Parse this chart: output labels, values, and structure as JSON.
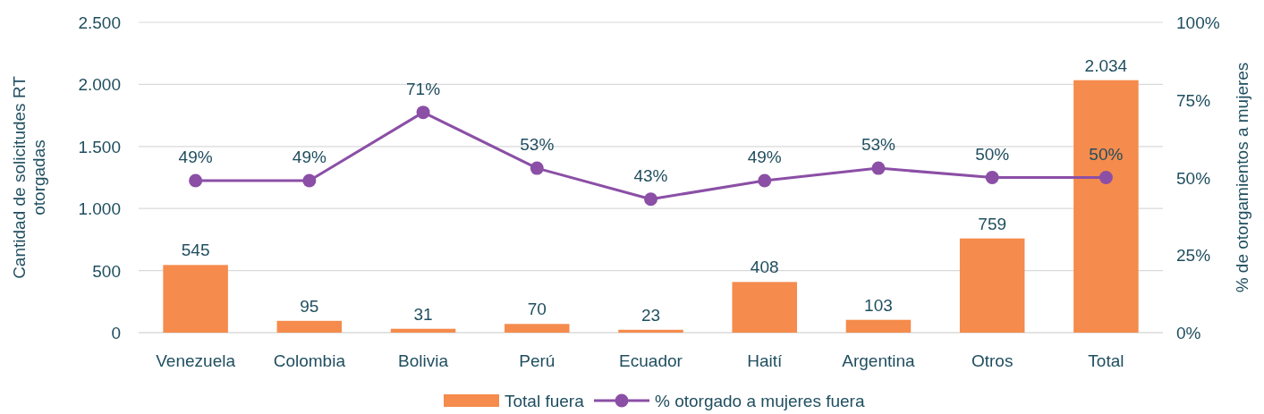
{
  "chart_data": {
    "type": "bar",
    "categories": [
      "Venezuela",
      "Colombia",
      "Bolivia",
      "Perú",
      "Ecuador",
      "Haití",
      "Argentina",
      "Otros",
      "Total"
    ],
    "series": [
      {
        "name": "Total fuera",
        "color": "#f58b4c",
        "values": [
          545,
          95,
          31,
          70,
          23,
          408,
          103,
          759,
          2034
        ],
        "value_labels": [
          "545",
          "95",
          "31",
          "70",
          "23",
          "408",
          "103",
          "759",
          "2.034"
        ]
      },
      {
        "name": "% otorgado a mujeres fuera",
        "type": "line",
        "axis": "y2",
        "color": "#8b4fa6",
        "marker": "circle",
        "values": [
          49,
          49,
          71,
          53,
          43,
          49,
          53,
          50,
          50
        ],
        "value_labels": [
          "49%",
          "49%",
          "71%",
          "53%",
          "43%",
          "49%",
          "53%",
          "50%",
          "50%"
        ]
      }
    ],
    "ylabel": "Cantidad de solicitudes RT otorgadas",
    "y2label": "% de otorgamientos a mujeres",
    "ylim": [
      0,
      2500
    ],
    "yticks": [
      0,
      500,
      {
        "value": 1000,
        "label": "1.000"
      },
      {
        "value": 1500,
        "label": "1.500"
      },
      {
        "value": 2000,
        "label": "2.000"
      },
      {
        "value": 2500,
        "label": "2.500"
      }
    ],
    "y2lim": [
      0,
      100
    ],
    "y2ticks": [
      {
        "value": 0,
        "label": "0%"
      },
      {
        "value": 25,
        "label": "25%"
      },
      {
        "value": 50,
        "label": "50%"
      },
      {
        "value": 75,
        "label": "75%"
      },
      {
        "value": 100,
        "label": "100%"
      }
    ],
    "grid": "y",
    "legend": "bottom"
  }
}
